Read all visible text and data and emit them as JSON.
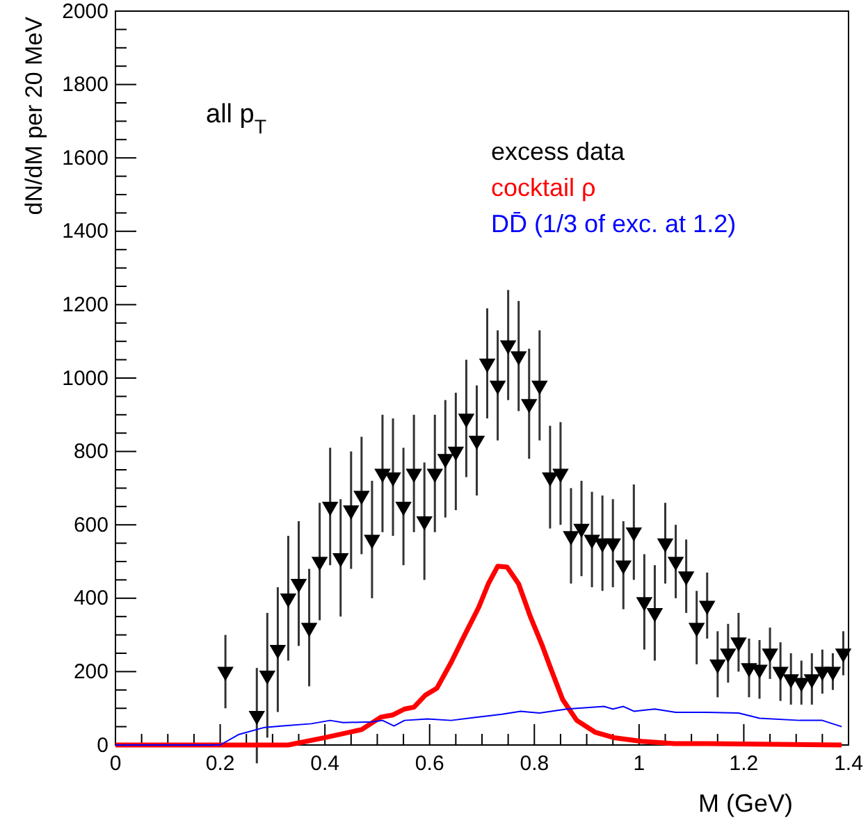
{
  "chart_data": {
    "type": "scatter",
    "xlabel": "M (GeV)",
    "ylabel": "dN/dM per 20 MeV",
    "annotations": [
      "all p$_{T}$"
    ],
    "xlim": [
      0,
      1.4
    ],
    "ylim": [
      0,
      2000
    ],
    "xticks": [
      0,
      {
        "value": 0.05,
        "label": null
      },
      {
        "value": 0.1,
        "label": null
      },
      {
        "value": 0.15,
        "label": null
      },
      0.2,
      {
        "value": 0.25,
        "label": null
      },
      {
        "value": 0.3,
        "label": null
      },
      {
        "value": 0.35,
        "label": null
      },
      0.4,
      {
        "value": 0.45,
        "label": null
      },
      {
        "value": 0.5,
        "label": null
      },
      {
        "value": 0.55,
        "label": null
      },
      0.6,
      {
        "value": 0.65,
        "label": null
      },
      {
        "value": 0.7,
        "label": null
      },
      {
        "value": 0.75,
        "label": null
      },
      0.8,
      {
        "value": 0.85,
        "label": null
      },
      {
        "value": 0.9,
        "label": null
      },
      {
        "value": 0.95,
        "label": null
      },
      1,
      {
        "value": 1.05,
        "label": null
      },
      {
        "value": 1.1,
        "label": null
      },
      {
        "value": 1.15,
        "label": null
      },
      1.2,
      {
        "value": 1.25,
        "label": null
      },
      {
        "value": 1.3,
        "label": null
      },
      {
        "value": 1.35,
        "label": null
      },
      1.4
    ],
    "yticks": [
      0,
      {
        "value": 50,
        "label": null
      },
      {
        "value": 100,
        "label": null
      },
      {
        "value": 150,
        "label": null
      },
      200,
      {
        "value": 250,
        "label": null
      },
      {
        "value": 300,
        "label": null
      },
      {
        "value": 350,
        "label": null
      },
      400,
      {
        "value": 450,
        "label": null
      },
      {
        "value": 500,
        "label": null
      },
      {
        "value": 550,
        "label": null
      },
      600,
      {
        "value": 650,
        "label": null
      },
      {
        "value": 700,
        "label": null
      },
      {
        "value": 750,
        "label": null
      },
      800,
      {
        "value": 850,
        "label": null
      },
      {
        "value": 900,
        "label": null
      },
      {
        "value": 950,
        "label": null
      },
      1000,
      {
        "value": 1050,
        "label": null
      },
      {
        "value": 1100,
        "label": null
      },
      {
        "value": 1150,
        "label": null
      },
      1200,
      {
        "value": 1250,
        "label": null
      },
      {
        "value": 1300,
        "label": null
      },
      {
        "value": 1350,
        "label": null
      },
      1400,
      {
        "value": 1450,
        "label": null
      },
      {
        "value": 1500,
        "label": null
      },
      {
        "value": 1550,
        "label": null
      },
      1600,
      {
        "value": 1650,
        "label": null
      },
      {
        "value": 1700,
        "label": null
      },
      {
        "value": 1750,
        "label": null
      },
      1800,
      {
        "value": 1850,
        "label": null
      },
      {
        "value": 1900,
        "label": null
      },
      {
        "value": 1950,
        "label": null
      },
      2000
    ],
    "grid": false,
    "legend": "top right",
    "series": [
      {
        "name": "excess data",
        "marker": "triangle",
        "color": "#000000",
        "x": [
          0.21,
          0.27,
          0.29,
          0.31,
          0.33,
          0.35,
          0.37,
          0.39,
          0.41,
          0.43,
          0.45,
          0.47,
          0.49,
          0.51,
          0.53,
          0.55,
          0.57,
          0.59,
          0.61,
          0.63,
          0.65,
          0.67,
          0.69,
          0.71,
          0.73,
          0.75,
          0.77,
          0.79,
          0.81,
          0.83,
          0.85,
          0.87,
          0.89,
          0.91,
          0.93,
          0.95,
          0.97,
          0.99,
          1.01,
          1.03,
          1.05,
          1.07,
          1.09,
          1.11,
          1.13,
          1.15,
          1.17,
          1.19,
          1.21,
          1.23,
          1.25,
          1.27,
          1.29,
          1.31,
          1.33,
          1.35,
          1.37,
          1.39
        ],
        "values": [
          200,
          80,
          190,
          260,
          400,
          440,
          320,
          500,
          650,
          510,
          640,
          680,
          560,
          740,
          730,
          650,
          740,
          610,
          740,
          780,
          800,
          890,
          830,
          1040,
          980,
          1090,
          1060,
          930,
          980,
          730,
          740,
          570,
          590,
          560,
          550,
          550,
          490,
          580,
          390,
          360,
          550,
          500,
          460,
          320,
          380,
          220,
          250,
          280,
          210,
          206,
          250,
          200,
          180,
          170,
          180,
          200,
          200,
          250
        ],
        "errors": [
          100,
          130,
          170,
          170,
          170,
          170,
          160,
          160,
          160,
          160,
          160,
          160,
          160,
          160,
          160,
          160,
          160,
          160,
          160,
          160,
          160,
          160,
          150,
          150,
          150,
          150,
          150,
          150,
          150,
          140,
          140,
          130,
          130,
          130,
          130,
          120,
          120,
          130,
          130,
          130,
          110,
          100,
          100,
          100,
          90,
          90,
          80,
          80,
          80,
          80,
          70,
          80,
          70,
          60,
          70,
          60,
          50,
          60
        ]
      },
      {
        "name": "cocktail ρ",
        "type": "line",
        "marker": "none",
        "color": "#ff0000",
        "x": [
          0,
          0.2,
          0.33,
          0.4,
          0.47,
          0.507,
          0.53,
          0.552,
          0.57,
          0.592,
          0.614,
          0.641,
          0.667,
          0.694,
          0.712,
          0.73,
          0.748,
          0.77,
          0.792,
          0.814,
          0.832,
          0.854,
          0.881,
          0.916,
          0.952,
          1.005,
          1.067,
          1.13,
          1.387
        ],
        "values": [
          0,
          0,
          0,
          20,
          42,
          76,
          82,
          98,
          103,
          136,
          155,
          225,
          300,
          376,
          439,
          487,
          485,
          439,
          351,
          275,
          206,
          124,
          67,
          35,
          20,
          10,
          4,
          4,
          0
        ]
      },
      {
        "name": "DD̄ (1/3 of exc. at 1.2)",
        "type": "line",
        "marker": "none",
        "color": "#0000ff",
        "x": [
          0,
          0.2,
          0.236,
          0.285,
          0.32,
          0.374,
          0.41,
          0.435,
          0.49,
          0.51,
          0.532,
          0.552,
          0.596,
          0.641,
          0.685,
          0.738,
          0.774,
          0.81,
          0.862,
          0.933,
          0.95,
          0.97,
          0.99,
          1.03,
          1.07,
          1.13,
          1.19,
          1.23,
          1.307,
          1.35,
          1.387
        ],
        "values": [
          0,
          0,
          29,
          48,
          52,
          58,
          67,
          61,
          63,
          67,
          52,
          67,
          71,
          67,
          75,
          84,
          92,
          87,
          98,
          105,
          98,
          105,
          92,
          98,
          89,
          89,
          87,
          73,
          67,
          67,
          50
        ]
      }
    ]
  }
}
